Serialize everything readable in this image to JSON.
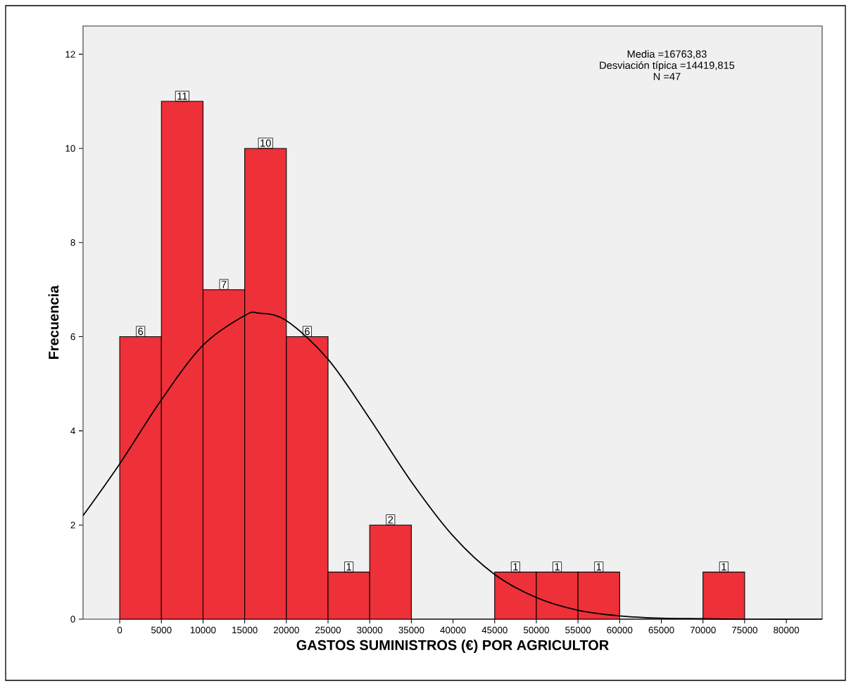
{
  "chart_data": {
    "type": "histogram",
    "xlabel": "GASTOS SUMINISTROS (€) POR AGRICULTOR",
    "ylabel": "Frecuencia",
    "annotations": [
      "Media =16763,83",
      "Desviación típica =14419,815",
      "N =47"
    ],
    "series": [
      {
        "type": "histogram",
        "color": "#ee3038",
        "bins": [
          0,
          5000,
          10000,
          15000,
          20000,
          25000,
          30000,
          35000,
          40000,
          45000,
          50000,
          55000,
          60000,
          65000,
          70000,
          75000
        ],
        "values": [
          6,
          11,
          7,
          10,
          6,
          1,
          2,
          0,
          0,
          1,
          1,
          1,
          0,
          0,
          1
        ],
        "value_labels": [
          "6",
          "11",
          "7",
          "10",
          "6",
          "1",
          "2",
          null,
          null,
          "1",
          "1",
          "1",
          null,
          null,
          "1"
        ]
      },
      {
        "type": "line",
        "color": "#000000",
        "x": [
          -4400,
          0,
          5000,
          10000,
          15000,
          16764,
          20000,
          25000,
          30000,
          35000,
          40000,
          45000,
          50000,
          55000,
          60000,
          65000,
          70000,
          75000,
          84300
        ],
        "values": [
          2.2,
          3.3,
          4.66,
          5.82,
          6.45,
          6.5,
          6.34,
          5.52,
          4.26,
          2.92,
          1.77,
          0.95,
          0.46,
          0.19,
          0.07,
          0.02,
          0.01,
          0,
          0
        ]
      }
    ],
    "xlim": [
      -4400,
      84300
    ],
    "ylim": [
      0,
      12.6
    ],
    "xticks": [
      0,
      5000,
      10000,
      15000,
      20000,
      25000,
      30000,
      35000,
      40000,
      45000,
      50000,
      55000,
      60000,
      65000,
      70000,
      75000,
      80000
    ],
    "yticks": [
      0,
      2,
      4,
      6,
      8,
      10,
      12
    ]
  }
}
